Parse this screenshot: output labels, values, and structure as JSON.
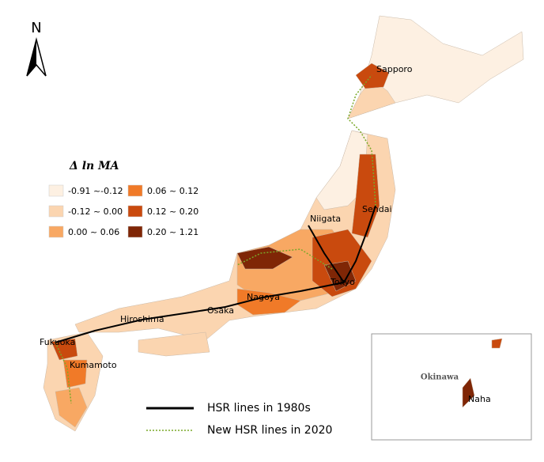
{
  "north_arrow": "N",
  "legend": {
    "title": "Δ ln MA",
    "classes": [
      {
        "label": "-0.91 ~-0.12",
        "color": "#fdf0e2"
      },
      {
        "label": "-0.12 ~ 0.00",
        "color": "#fbd5b0"
      },
      {
        "label": "0.00 ~ 0.06",
        "color": "#f8a863"
      },
      {
        "label": "0.06 ~ 0.12",
        "color": "#f07a28"
      },
      {
        "label": "0.12 ~ 0.20",
        "color": "#c94a0e"
      },
      {
        "label": "0.20 ~ 1.21",
        "color": "#7f2606"
      }
    ]
  },
  "lines_legend": [
    {
      "label": "HSR lines in 1980s",
      "color": "#000000"
    },
    {
      "label": "New HSR lines in 2020",
      "color": "#7aa829"
    }
  ],
  "cities": [
    "Sapporo",
    "Niigata",
    "Sendai",
    "Tokyo",
    "Nagoya",
    "Osaka",
    "Hiroshima",
    "Fukuoka",
    "Kumamoto"
  ],
  "inset": {
    "title": "Okinawa",
    "city": "Naha"
  }
}
